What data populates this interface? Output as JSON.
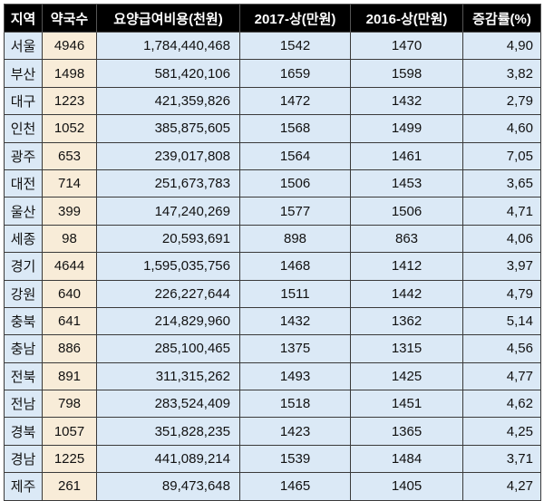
{
  "table": {
    "headers": [
      "지역",
      "약국수",
      "요양급여비용(천원)",
      "2017-상(만원)",
      "2016-상(만원)",
      "증감률(%)"
    ],
    "rows": [
      [
        "서울",
        "4946",
        "1,784,440,468",
        "1542",
        "1470",
        "4,90"
      ],
      [
        "부산",
        "1498",
        "581,420,106",
        "1659",
        "1598",
        "3,82"
      ],
      [
        "대구",
        "1223",
        "421,359,826",
        "1472",
        "1432",
        "2,79"
      ],
      [
        "인천",
        "1052",
        "385,875,605",
        "1568",
        "1499",
        "4,60"
      ],
      [
        "광주",
        "653",
        "239,017,808",
        "1564",
        "1461",
        "7,05"
      ],
      [
        "대전",
        "714",
        "251,673,783",
        "1506",
        "1453",
        "3,65"
      ],
      [
        "울산",
        "399",
        "147,240,269",
        "1577",
        "1506",
        "4,71"
      ],
      [
        "세종",
        "98",
        "20,593,691",
        "898",
        "863",
        "4,06"
      ],
      [
        "경기",
        "4644",
        "1,595,035,756",
        "1468",
        "1412",
        "3,97"
      ],
      [
        "강원",
        "640",
        "226,227,644",
        "1511",
        "1442",
        "4,79"
      ],
      [
        "충북",
        "641",
        "214,829,960",
        "1432",
        "1362",
        "5,14"
      ],
      [
        "충남",
        "886",
        "285,100,465",
        "1375",
        "1315",
        "4,56"
      ],
      [
        "전북",
        "891",
        "311,315,262",
        "1493",
        "1425",
        "4,77"
      ],
      [
        "전남",
        "798",
        "283,524,409",
        "1518",
        "1451",
        "4,62"
      ],
      [
        "경북",
        "1057",
        "351,828,235",
        "1423",
        "1365",
        "4,25"
      ],
      [
        "경남",
        "1225",
        "441,089,214",
        "1539",
        "1484",
        "3,71"
      ],
      [
        "제주",
        "261",
        "89,473,648",
        "1465",
        "1405",
        "4,27"
      ]
    ]
  },
  "colors": {
    "header_bg": "#000000",
    "header_text": "#ffffff",
    "cell_blue": "#dbe9f6",
    "cell_beige": "#f8ecd8",
    "border": "#3a3a3a"
  }
}
